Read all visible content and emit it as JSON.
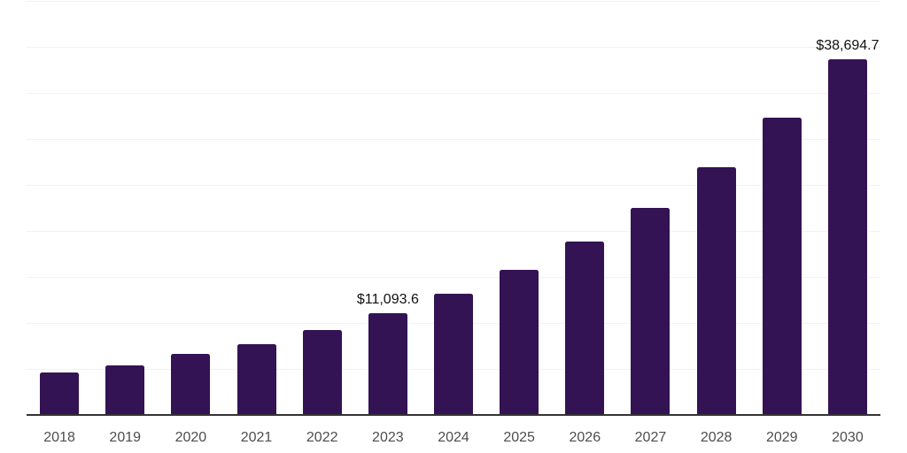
{
  "chart_data": {
    "type": "bar",
    "title": "",
    "xlabel": "",
    "ylabel": "",
    "categories": [
      "2018",
      "2019",
      "2020",
      "2021",
      "2022",
      "2023",
      "2024",
      "2025",
      "2026",
      "2027",
      "2028",
      "2029",
      "2030"
    ],
    "values": [
      4620,
      5420,
      6610,
      7700,
      9210,
      11093.6,
      13180,
      15800,
      18850,
      22500,
      26900,
      32280,
      38694.7
    ],
    "value_labels": {
      "2023": "$11,093.6",
      "2030": "$38,694.7"
    },
    "ylim": [
      0,
      45000
    ],
    "grid_step": 5000,
    "grid": true,
    "legend": false,
    "colors": {
      "bar": "#331353",
      "gridline": "#F2F2F2",
      "axis_line": "#333333",
      "tick_label": "#4D4D4D",
      "value_label": "#111111",
      "background": "#FFFFFF"
    }
  }
}
